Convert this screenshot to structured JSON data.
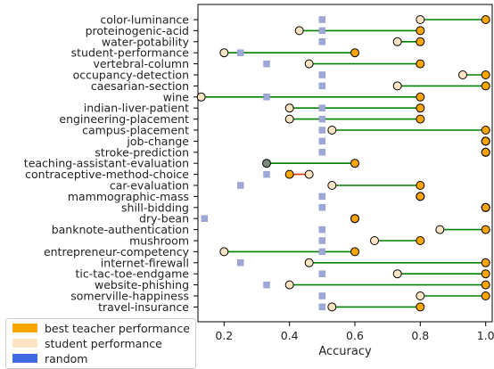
{
  "chart_data": {
    "type": "dumbbell",
    "xlabel": "Accuracy",
    "xlim": [
      0.12,
      1.02
    ],
    "xticks": [
      "0.2",
      "0.4",
      "0.6",
      "0.8",
      "1.0"
    ],
    "xtick_values": [
      0.2,
      0.4,
      0.6,
      0.8,
      1.0
    ],
    "colors": {
      "teacher": "#ffa500",
      "student": "#ffe4c4",
      "random": "#9ea8d8",
      "improve_line": "#008000",
      "decline_line": "#e03000"
    },
    "legend": {
      "placement": "outside-bottom-left",
      "items": [
        {
          "label": "best teacher performance",
          "color": "#ffa500"
        },
        {
          "label": "student performance",
          "color": "#ffe4c4"
        },
        {
          "label": "random",
          "color": "#4169e1"
        }
      ]
    },
    "categories": [
      "color-luminance",
      "proteinogenic-acid",
      "water-potability",
      "student-performance",
      "vertebral-column",
      "occupancy-detection",
      "caesarian-section",
      "wine",
      "indian-liver-patient",
      "engineering-placement",
      "campus-placement",
      "job-change",
      "stroke-prediction",
      "teaching-assistant-evaluation",
      "contraceptive-method-choice",
      "car-evaluation",
      "mammographic-mass",
      "shill-bidding",
      "dry-bean",
      "banknote-authentication",
      "mushroom",
      "entrepreneur-competency",
      "internet-firewall",
      "tic-tac-toe-endgame",
      "website-phishing",
      "somerville-happiness",
      "travel-insurance"
    ],
    "series": [
      {
        "name": "best teacher performance",
        "values": [
          1.0,
          0.8,
          0.8,
          0.6,
          0.8,
          1.0,
          1.0,
          0.8,
          0.8,
          0.8,
          1.0,
          1.0,
          1.0,
          0.6,
          0.4,
          0.8,
          0.8,
          1.0,
          0.6,
          1.0,
          0.8,
          0.6,
          1.0,
          1.0,
          1.0,
          1.0,
          0.8
        ]
      },
      {
        "name": "student performance",
        "values": [
          0.8,
          0.43,
          0.73,
          0.2,
          0.46,
          0.93,
          0.73,
          0.13,
          0.4,
          0.4,
          0.53,
          1.0,
          1.0,
          0.33,
          0.46,
          0.53,
          0.8,
          1.0,
          0.6,
          0.86,
          0.66,
          0.2,
          0.46,
          0.73,
          0.4,
          0.8,
          0.53
        ]
      },
      {
        "name": "random",
        "values": [
          0.5,
          0.5,
          0.5,
          0.25,
          0.33,
          0.5,
          0.5,
          0.33,
          0.5,
          0.5,
          0.5,
          0.5,
          0.5,
          0.33,
          0.33,
          0.25,
          0.5,
          0.5,
          0.14,
          0.5,
          0.5,
          0.5,
          0.25,
          0.5,
          0.33,
          0.5,
          0.5
        ]
      }
    ]
  }
}
